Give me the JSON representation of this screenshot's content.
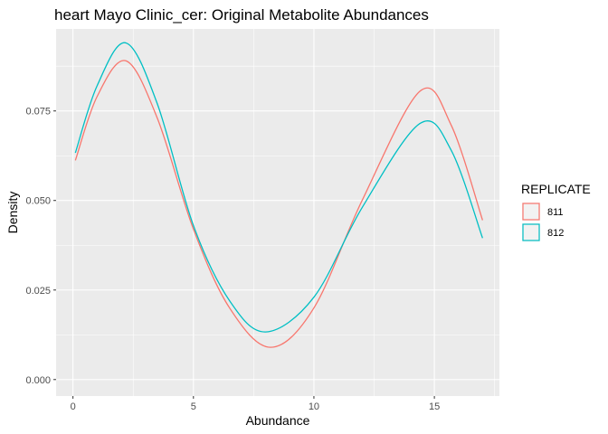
{
  "chart_data": {
    "type": "line",
    "title": "heart Mayo Clinic_cer: Original Metabolite Abundances",
    "xlabel": "Abundance",
    "ylabel": "Density",
    "xlim": [
      -0.7,
      17.7
    ],
    "ylim": [
      -0.0046,
      0.0979
    ],
    "x_ticks": [
      0,
      5,
      10,
      15
    ],
    "x_tick_labels": [
      "0",
      "5",
      "10",
      "15"
    ],
    "y_ticks": [
      0.0,
      0.025,
      0.05,
      0.075
    ],
    "y_tick_labels": [
      "0.000",
      "0.025",
      "0.050",
      "0.075"
    ],
    "grid": true,
    "legend": {
      "title": "REPLICATE",
      "position": "right"
    },
    "series": [
      {
        "name": "811",
        "color": "#F8766D",
        "x": [
          0.1,
          1.0,
          2.2,
          3.5,
          5.0,
          6.5,
          8.2,
          10.0,
          12.0,
          14.4,
          15.7,
          17.0
        ],
        "y": [
          0.0612,
          0.079,
          0.089,
          0.073,
          0.042,
          0.02,
          0.009,
          0.02,
          0.05,
          0.0805,
          0.071,
          0.0445
        ]
      },
      {
        "name": "812",
        "color": "#00BFC4",
        "x": [
          0.1,
          1.0,
          2.2,
          3.5,
          5.0,
          6.5,
          8.0,
          10.0,
          12.0,
          14.4,
          15.7,
          17.0
        ],
        "y": [
          0.0633,
          0.082,
          0.094,
          0.077,
          0.043,
          0.022,
          0.0133,
          0.023,
          0.048,
          0.0715,
          0.064,
          0.0395
        ]
      }
    ]
  }
}
